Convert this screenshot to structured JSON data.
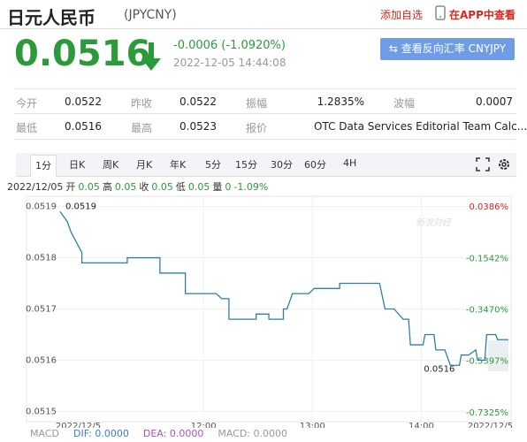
{
  "header": {
    "title": "日元人民币",
    "code": "(JPYCNY)",
    "add": "添加自选",
    "app": "在APP中查看"
  },
  "quote": {
    "price": "0.0516",
    "change": "-0.0006 (-1.0920%)",
    "time": "2022-12-05 14:44:08",
    "button": "查看反向汇率 CNYJPY"
  },
  "stats": [
    [
      "今开",
      "0.0522"
    ],
    [
      "昨收",
      "0.0522"
    ],
    [
      "振幅",
      "1.2835%"
    ],
    [
      "波幅",
      "0.0007"
    ],
    [
      "最低",
      "0.0516"
    ],
    [
      "最高",
      "0.0523"
    ],
    [
      "报价",
      "OTC Data Services Editorial Team Calc..."
    ]
  ],
  "tabs": [
    "1分",
    "日K",
    "周K",
    "月K",
    "年K",
    "5分",
    "15分",
    "30分",
    "60分",
    "4H"
  ],
  "info": [
    "2022/12/05",
    "开",
    "0.05",
    "高",
    "0.05",
    "收",
    "0.05",
    "低",
    "0.05",
    "量",
    "0",
    "-1.09%"
  ],
  "macd": [
    "MACD",
    "DIF: 0.0000",
    "DEA: 0.0000",
    "MACD: 0.0000"
  ],
  "chart_data": {
    "type": "line",
    "color": "#2f7fa3",
    "watermark": "新浪财经",
    "x": [
      641,
      643,
      645,
      647,
      650,
      653,
      653,
      678,
      678,
      696,
      696,
      710,
      710,
      727,
      730,
      734,
      734,
      749,
      749,
      756,
      756,
      764,
      764,
      766,
      769,
      778,
      781,
      795,
      795,
      804,
      817,
      820,
      825,
      830,
      833,
      834,
      841,
      842,
      847,
      848,
      853,
      856,
      861,
      862,
      866,
      870,
      871,
      875,
      876,
      881,
      882,
      888
    ],
    "values": [
      0.05189,
      0.05188,
      0.05187,
      0.05185,
      0.05183,
      0.05181,
      0.05179,
      0.05179,
      0.0518,
      0.0518,
      0.05177,
      0.05177,
      0.05173,
      0.05173,
      0.05172,
      0.05172,
      0.05168,
      0.05168,
      0.05169,
      0.05169,
      0.05168,
      0.05168,
      0.0517,
      0.0517,
      0.05173,
      0.05173,
      0.05174,
      0.05174,
      0.05175,
      0.05175,
      0.05175,
      0.0517,
      0.0517,
      0.05168,
      0.05168,
      0.05163,
      0.05163,
      0.05165,
      0.05165,
      0.05162,
      0.05162,
      0.05159,
      0.05159,
      0.05161,
      0.05161,
      0.05162,
      0.0516,
      0.0516,
      0.05165,
      0.05165,
      0.05164,
      0.05164
    ],
    "xlim": [
      641,
      888
    ],
    "xticks": [
      {
        "value": 651,
        "label": "2022/12/5"
      },
      {
        "value": 720,
        "label": "12:00"
      },
      {
        "value": 780,
        "label": "13:00"
      },
      {
        "value": 840,
        "label": "14:00"
      },
      {
        "value": 878,
        "label": "2022/12/5"
      }
    ],
    "ylim": [
      0.05148,
      0.05192
    ],
    "yticks": [
      0.0519,
      0.0518,
      0.0517,
      0.0516,
      0.0515
    ],
    "y2lim": [
      -0.7656,
      0.0783
    ],
    "y2ticks": [
      {
        "value": 0.0386,
        "label": "0.0386%"
      },
      {
        "value": -0.1542,
        "label": "-0.1542%"
      },
      {
        "value": -0.347,
        "label": "-0.3470%"
      },
      {
        "value": -0.5397,
        "label": "-0.5397%"
      },
      {
        "value": -0.7325,
        "label": "-0.7325%"
      }
    ],
    "annotations": [
      {
        "text": "0.0519",
        "x": 641,
        "y": 0.0519
      },
      {
        "text": "0.0516",
        "x": 856,
        "y": 0.0516
      }
    ],
    "grid": true
  }
}
